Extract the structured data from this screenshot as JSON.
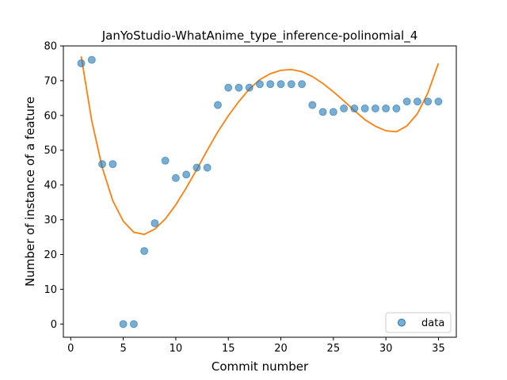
{
  "chart_data": {
    "type": "scatter",
    "title": "JanYoStudio-WhatAnime_type_inference-polinomial_4",
    "xlabel": "Commit number",
    "ylabel": "Number of instance of a feature",
    "xlim": [
      -0.7,
      36.7
    ],
    "ylim": [
      -3.8,
      80.0
    ],
    "x_ticks": [
      0,
      5,
      10,
      15,
      20,
      25,
      30,
      35
    ],
    "y_ticks": [
      0,
      10,
      20,
      30,
      40,
      50,
      60,
      70,
      80
    ],
    "grid": false,
    "legend_position": "lower-right",
    "series": [
      {
        "name": "data",
        "kind": "points",
        "color": "#1f77b4",
        "x": [
          1,
          2,
          3,
          4,
          5,
          6,
          7,
          8,
          9,
          10,
          11,
          12,
          13,
          14,
          15,
          16,
          17,
          18,
          19,
          20,
          21,
          22,
          23,
          24,
          25,
          26,
          27,
          28,
          29,
          30,
          31,
          32,
          33,
          34,
          35
        ],
        "y": [
          75,
          76,
          46,
          46,
          0,
          0,
          21,
          29,
          47,
          42,
          43,
          45,
          45,
          63,
          68,
          68,
          68,
          69,
          69,
          69,
          69,
          69,
          63,
          61,
          61,
          62,
          62,
          62,
          62,
          62,
          62,
          64,
          64,
          64,
          64
        ]
      },
      {
        "kind": "fit",
        "color": "#ff7f0e",
        "x": [
          1,
          2,
          3,
          4,
          5,
          6,
          7,
          8,
          9,
          10,
          11,
          12,
          13,
          14,
          15,
          16,
          17,
          18,
          19,
          20,
          21,
          22,
          23,
          24,
          25,
          26,
          27,
          28,
          29,
          30,
          31,
          32,
          33,
          34,
          35
        ],
        "y": [
          77,
          58.5,
          45,
          35.5,
          29.6,
          26.4,
          25.8,
          27.3,
          30.2,
          34.3,
          39.2,
          44.5,
          50,
          55.3,
          59.9,
          64,
          67.6,
          70.3,
          72,
          73,
          73.2,
          72.6,
          71.2,
          69.2,
          66.8,
          64.2,
          61.4,
          58.8,
          56.9,
          55.6,
          55.3,
          57,
          60.5,
          66.5,
          75
        ]
      }
    ]
  }
}
